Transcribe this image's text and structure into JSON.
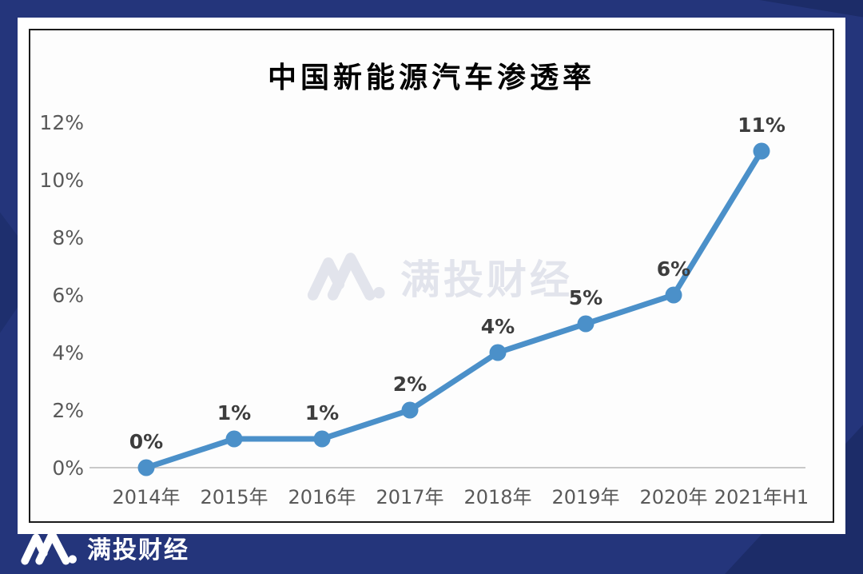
{
  "background": {
    "base_color": "#24357b",
    "shade_color": "#1c2c68"
  },
  "card": {
    "bg": "#ffffff",
    "frame_bg": "#fdfdfd",
    "frame_border": "#1b1b1b"
  },
  "chart_data": {
    "type": "line",
    "title": "中国新能源汽车渗透率",
    "categories": [
      "2014年",
      "2015年",
      "2016年",
      "2017年",
      "2018年",
      "2019年",
      "2020年",
      "2021年H1"
    ],
    "values": [
      0,
      1,
      1,
      2,
      4,
      5,
      6,
      11
    ],
    "point_labels": [
      "0%",
      "1%",
      "1%",
      "2%",
      "4%",
      "5%",
      "6%",
      "11%"
    ],
    "y_tick_values": [
      0,
      2,
      4,
      6,
      8,
      10,
      12
    ],
    "y_tick_labels": [
      "0%",
      "2%",
      "4%",
      "6%",
      "8%",
      "10%",
      "12%"
    ],
    "ylim": [
      0,
      12
    ],
    "xlabel": "",
    "ylabel": "",
    "grid": false,
    "legend_position": "none",
    "line_color": "#4b90c9",
    "marker_color": "#4b90c9",
    "axis_line_color": "#c9c9c9",
    "tick_text_color": "#595959",
    "point_label_color": "#3d3d3d"
  },
  "watermark": {
    "icon": "brand-m-logo",
    "text": "满投财经",
    "color": "#e2e4ec"
  },
  "footer": {
    "icon": "brand-m-logo",
    "brand": "满投财经",
    "color": "#ffffff"
  }
}
